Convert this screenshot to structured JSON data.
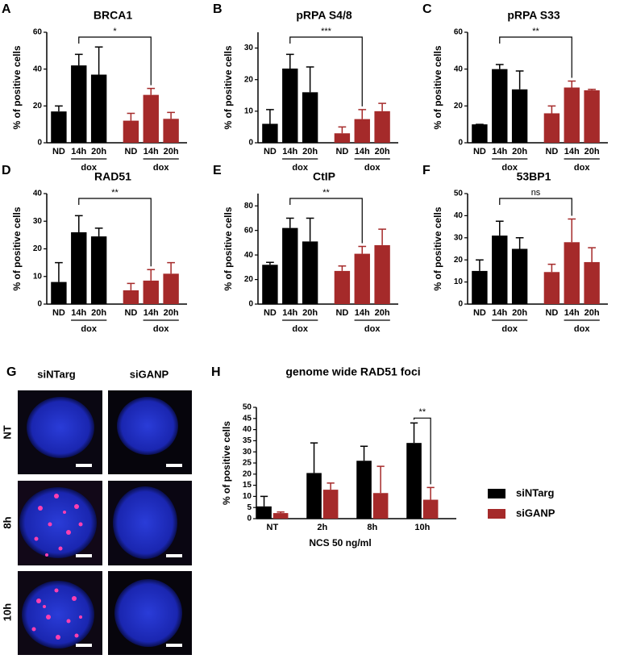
{
  "chart_data": [
    {
      "type": "bar",
      "panel": "A",
      "title": "BRCA1",
      "ylabel": "% of positive cells",
      "categories": [
        "ND",
        "14h",
        "20h"
      ],
      "group_label": "dox",
      "annotation": "*",
      "series": [
        {
          "color": "#000000",
          "values": [
            17,
            42,
            37
          ],
          "errors": [
            3,
            6,
            15
          ]
        },
        {
          "color": "#a52a2a",
          "values": [
            12,
            26,
            13
          ],
          "errors": [
            4,
            3.5,
            3.5
          ]
        }
      ],
      "ylim": [
        0,
        60
      ],
      "yticks": [
        0,
        20,
        40,
        60
      ]
    },
    {
      "type": "bar",
      "panel": "B",
      "title": "pRPA S4/8",
      "ylabel": "% of positive cells",
      "categories": [
        "ND",
        "14h",
        "20h"
      ],
      "group_label": "dox",
      "annotation": "***",
      "series": [
        {
          "color": "#000000",
          "values": [
            6,
            23.5,
            16
          ],
          "errors": [
            4.5,
            4.5,
            8
          ]
        },
        {
          "color": "#a52a2a",
          "values": [
            3,
            7.5,
            10
          ],
          "errors": [
            2,
            3,
            2.5
          ]
        }
      ],
      "ylim": [
        0,
        35
      ],
      "yticks": [
        0,
        10,
        20,
        30
      ]
    },
    {
      "type": "bar",
      "panel": "C",
      "title": "pRPA S33",
      "ylabel": "% of positive cells",
      "categories": [
        "ND",
        "14h",
        "20h"
      ],
      "group_label": "dox",
      "annotation": "**",
      "series": [
        {
          "color": "#000000",
          "values": [
            10,
            40,
            29
          ],
          "errors": [
            0,
            2.5,
            10
          ]
        },
        {
          "color": "#a52a2a",
          "values": [
            16,
            30,
            28.5
          ],
          "errors": [
            4,
            3.5,
            0.5
          ]
        }
      ],
      "ylim": [
        0,
        60
      ],
      "yticks": [
        0,
        20,
        40,
        60
      ]
    },
    {
      "type": "bar",
      "panel": "D",
      "title": "RAD51",
      "ylabel": "% of positive cells",
      "categories": [
        "ND",
        "14h",
        "20h"
      ],
      "group_label": "dox",
      "annotation": "**",
      "series": [
        {
          "color": "#000000",
          "values": [
            8,
            26,
            24.5
          ],
          "errors": [
            7,
            6,
            3
          ]
        },
        {
          "color": "#a52a2a",
          "values": [
            5,
            8.5,
            11
          ],
          "errors": [
            2.5,
            4,
            4
          ]
        }
      ],
      "ylim": [
        0,
        40
      ],
      "yticks": [
        0,
        10,
        20,
        30,
        40
      ]
    },
    {
      "type": "bar",
      "panel": "E",
      "title": "CtIP",
      "ylabel": "% of positive cells",
      "categories": [
        "ND",
        "14h",
        "20h"
      ],
      "group_label": "dox",
      "annotation": "**",
      "series": [
        {
          "color": "#000000",
          "values": [
            32,
            62,
            51
          ],
          "errors": [
            2,
            8,
            19
          ]
        },
        {
          "color": "#a52a2a",
          "values": [
            27,
            41,
            48
          ],
          "errors": [
            4,
            6,
            13
          ]
        }
      ],
      "ylim": [
        0,
        90
      ],
      "yticks": [
        0,
        20,
        40,
        60,
        80
      ]
    },
    {
      "type": "bar",
      "panel": "F",
      "title": "53BP1",
      "ylabel": "% of positive cells",
      "categories": [
        "ND",
        "14h",
        "20h"
      ],
      "group_label": "dox",
      "annotation": "ns",
      "series": [
        {
          "color": "#000000",
          "values": [
            15,
            31,
            25
          ],
          "errors": [
            5,
            6.5,
            5
          ]
        },
        {
          "color": "#a52a2a",
          "values": [
            14.5,
            28,
            19
          ],
          "errors": [
            3.5,
            10.5,
            6.5
          ]
        }
      ],
      "ylim": [
        0,
        50
      ],
      "yticks": [
        0,
        10,
        20,
        30,
        40,
        50
      ]
    },
    {
      "type": "bar",
      "panel": "H",
      "title": "genome wide RAD51 foci",
      "ylabel": "% of positive cells",
      "xlabel": "NCS 50 ng/ml",
      "categories": [
        "NT",
        "2h",
        "8h",
        "10h"
      ],
      "annotation": "**",
      "series": [
        {
          "name": "siNTarg",
          "color": "#000000",
          "values": [
            5.5,
            20.5,
            26,
            34
          ],
          "errors": [
            4.5,
            13.5,
            6.5,
            9
          ]
        },
        {
          "name": "siGANP",
          "color": "#a52a2a",
          "values": [
            2.5,
            13,
            11.5,
            8.5
          ],
          "errors": [
            0.5,
            3,
            12,
            5.5
          ]
        }
      ],
      "ylim": [
        0,
        50
      ],
      "yticks": [
        0,
        5,
        10,
        15,
        20,
        25,
        30,
        35,
        40,
        45,
        50
      ],
      "legend": "right"
    }
  ],
  "image_grid": {
    "panel": "G",
    "columns": [
      "siNTarg",
      "siGANP"
    ],
    "rows": [
      "NT",
      "8h",
      "10h"
    ]
  }
}
